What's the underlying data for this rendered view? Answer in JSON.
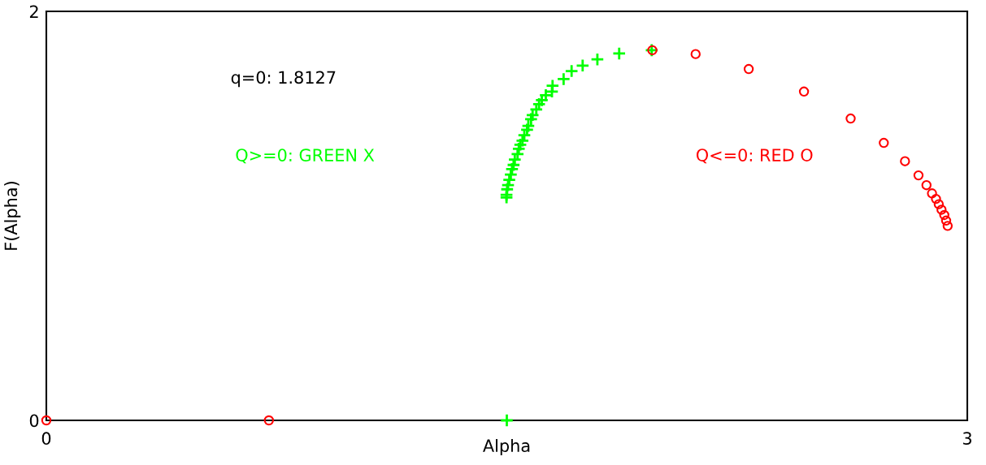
{
  "chart_data": {
    "type": "scatter",
    "xlabel": "Alpha",
    "ylabel": "F(Alpha)",
    "xlim": [
      0,
      3
    ],
    "ylim": [
      0,
      2
    ],
    "xticks": [
      0,
      3
    ],
    "yticks": [
      0,
      2
    ],
    "annotations": [
      "q=0: 1.8127"
    ],
    "series": [
      {
        "name": "Q>=0: GREEN X",
        "color": "#00ff00",
        "marker": "cross",
        "x": [
          1.5,
          1.499,
          1.499,
          1.501,
          1.504,
          1.508,
          1.513,
          1.517,
          1.522,
          1.526,
          1.535,
          1.539,
          1.544,
          1.551,
          1.557,
          1.566,
          1.57,
          1.579,
          1.584,
          1.596,
          1.605,
          1.614,
          1.627,
          1.647,
          1.649,
          1.685,
          1.711,
          1.747,
          1.795,
          1.866,
          1.972
        ],
        "values": [
          0,
          1.09,
          1.103,
          1.13,
          1.15,
          1.176,
          1.202,
          1.229,
          1.249,
          1.275,
          1.302,
          1.328,
          1.348,
          1.368,
          1.394,
          1.421,
          1.44,
          1.473,
          1.493,
          1.52,
          1.546,
          1.566,
          1.59,
          1.608,
          1.636,
          1.669,
          1.708,
          1.735,
          1.765,
          1.794,
          1.81
        ]
      },
      {
        "name": "Q<=0: RED O",
        "color": "#ff0000",
        "marker": "circle",
        "x": [
          0,
          0.725,
          1.974,
          2.115,
          2.288,
          2.468,
          2.62,
          2.728,
          2.797,
          2.841,
          2.867,
          2.885,
          2.898,
          2.907,
          2.916,
          2.925,
          2.931,
          2.936
        ],
        "values": [
          0,
          0,
          1.81,
          1.791,
          1.718,
          1.608,
          1.476,
          1.357,
          1.267,
          1.198,
          1.15,
          1.11,
          1.083,
          1.057,
          1.03,
          1.004,
          0.977,
          0.951
        ]
      }
    ]
  }
}
